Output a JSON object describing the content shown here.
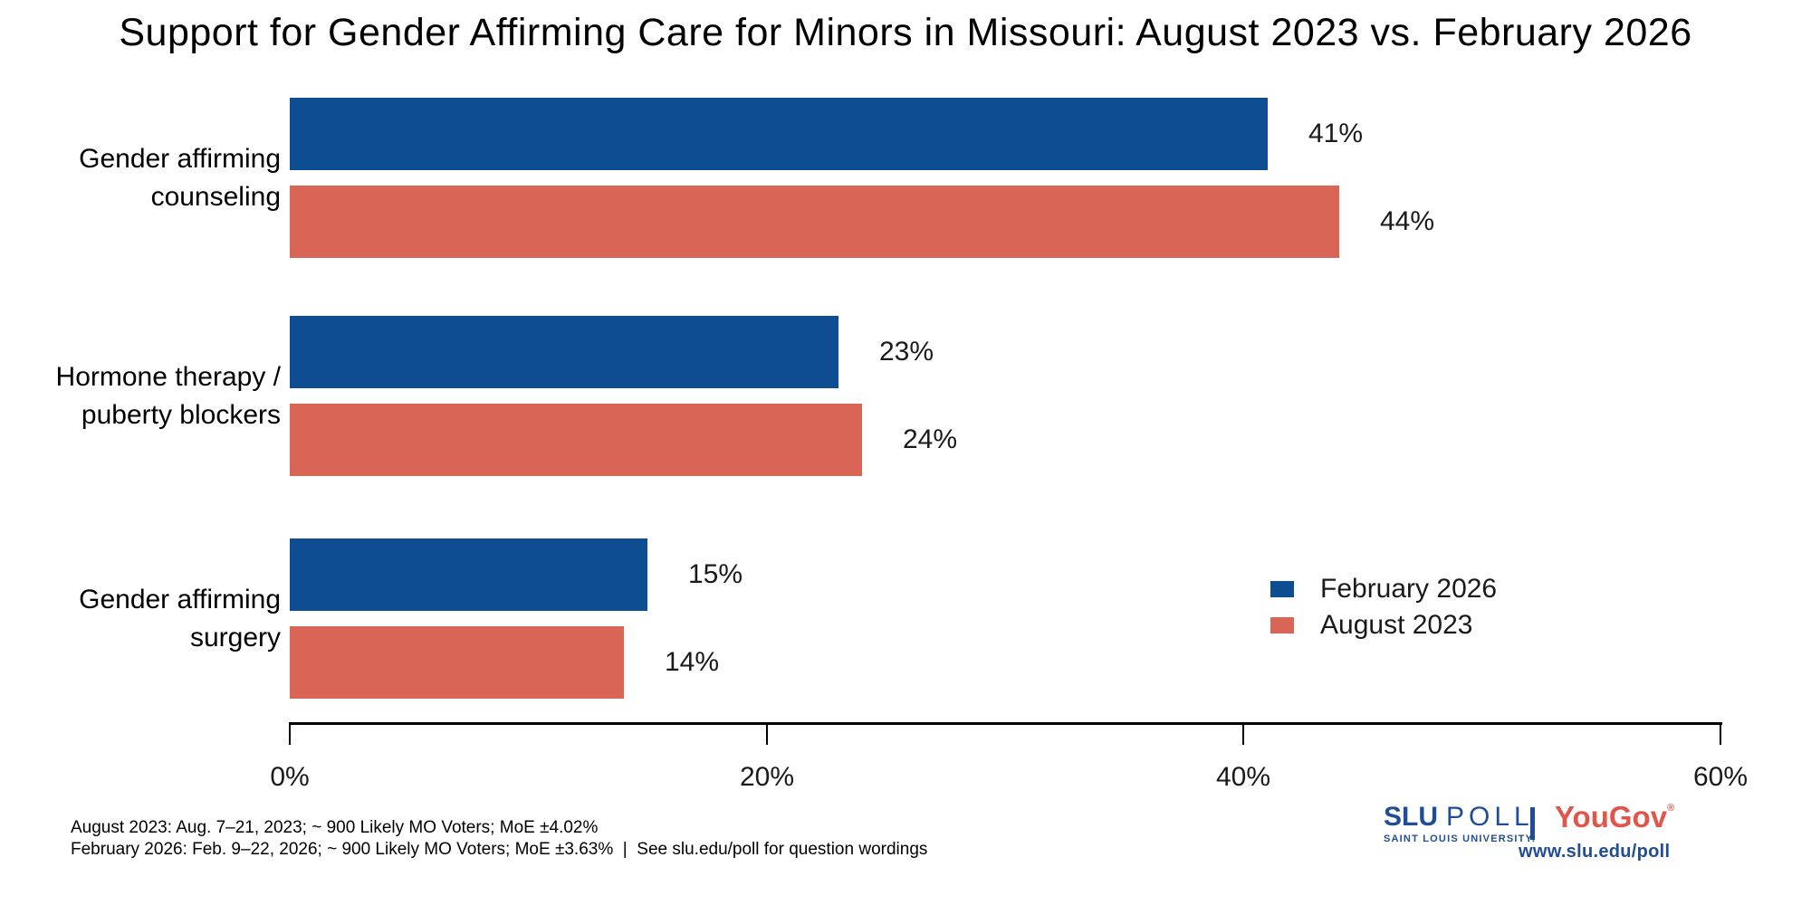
{
  "title": "Support for Gender Affirming Care for Minors in Missouri: August 2023 vs. February 2026",
  "chart_data": {
    "type": "bar",
    "orientation": "horizontal-grouped",
    "categories": [
      "Gender affirming\ncounseling",
      "Hormone therapy /\npuberty blockers",
      "Gender affirming\nsurgery"
    ],
    "series": [
      {
        "name": "February 2026",
        "color": "#0E4D92",
        "values": [
          41,
          23,
          15
        ]
      },
      {
        "name": "August 2023",
        "color": "#D96556",
        "values": [
          44,
          24,
          14
        ]
      }
    ],
    "value_labels": [
      [
        "41%",
        "23%",
        "15%"
      ],
      [
        "44%",
        "24%",
        "14%"
      ]
    ],
    "xlim": [
      0,
      60
    ],
    "x_ticks": [
      0,
      20,
      40,
      60
    ],
    "x_tick_labels": [
      "0%",
      "20%",
      "40%",
      "60%"
    ],
    "grid": false,
    "legend_position": "right-center"
  },
  "footnotes": {
    "line1": "August 2023: Aug. 7–21, 2023; ~ 900 Likely MO Voters; MoE ±4.02%",
    "line2": "February 2026: Feb. 9–22, 2026; ~ 900 Likely MO Voters; MoE ±3.63%  |  See slu.edu/poll for question wordings"
  },
  "branding": {
    "slu_name": "SLU",
    "slu_poll": "POLL",
    "slu_sub": "SAINT LOUIS UNIVERSITY.",
    "partner": "YouGov",
    "partner_mark": "®",
    "url": "www.slu.edu/poll",
    "slu_blue": "#1F4E96",
    "partner_red": "#E0564A"
  }
}
